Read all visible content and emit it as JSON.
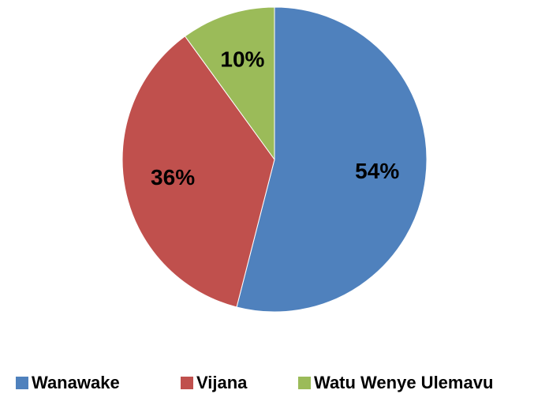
{
  "chart_data": {
    "type": "pie",
    "categories": [
      "Wanawake",
      "Vijana",
      "Watu Wenye Ulemavu"
    ],
    "values": [
      54,
      36,
      10
    ],
    "value_labels": [
      "54%",
      "36%",
      "10%"
    ],
    "colors": [
      "#4f81bd",
      "#c0504d",
      "#9bbb59"
    ],
    "legend": "bottom"
  }
}
